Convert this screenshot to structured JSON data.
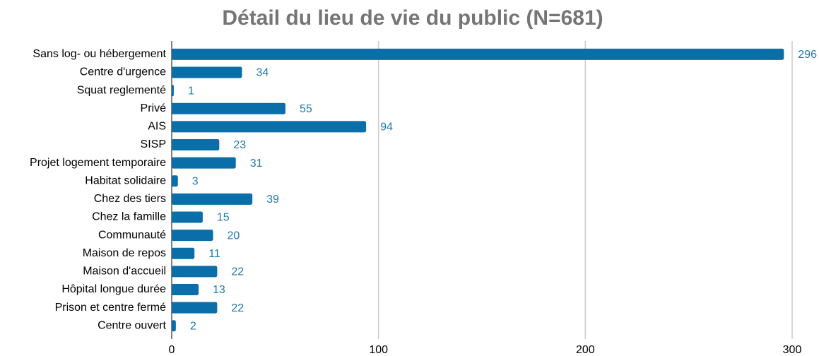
{
  "chart_data": {
    "type": "bar",
    "orientation": "horizontal",
    "title": "Détail du lieu de vie du public (N=681)",
    "categories": [
      "Sans log- ou hébergement",
      "Centre d'urgence",
      "Squat reglementé",
      "Privé",
      "AIS",
      "SISP",
      "Projet logement temporaire",
      "Habitat solidaire",
      "Chez des tiers",
      "Chez la famille",
      "Communauté",
      "Maison de repos",
      "Maison d'accueil",
      "Hôpital longue durée",
      "Prison et centre fermé",
      "Centre ouvert"
    ],
    "values": [
      296,
      34,
      1,
      55,
      94,
      23,
      31,
      3,
      39,
      15,
      20,
      11,
      22,
      13,
      22,
      2
    ],
    "color": "#0a6ea8",
    "xlim": [
      0,
      300
    ],
    "xticks": [
      0,
      100,
      200,
      300
    ],
    "grid": true
  }
}
